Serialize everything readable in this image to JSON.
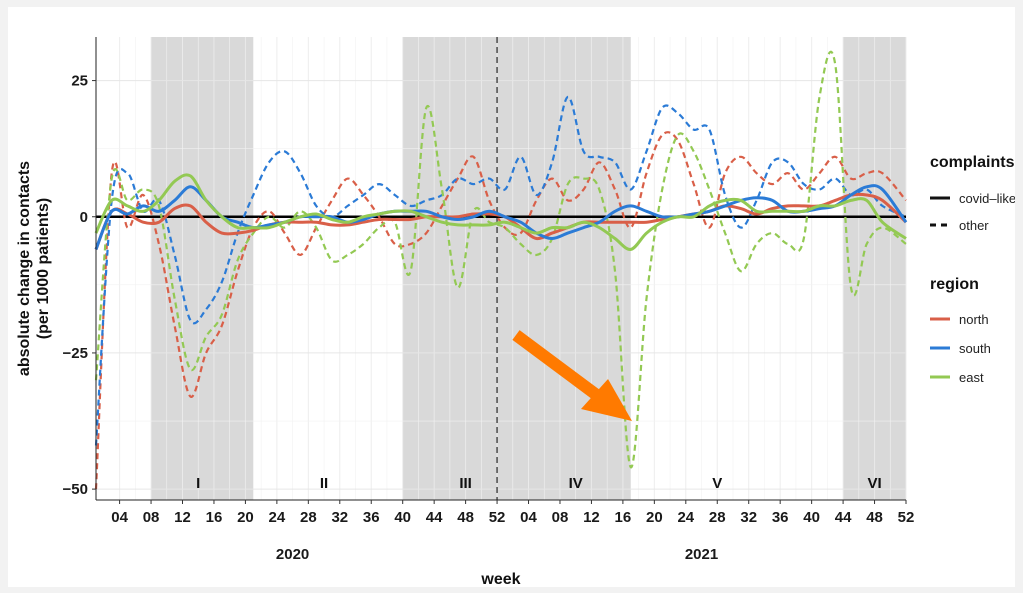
{
  "chart_data": {
    "type": "line",
    "ylabel": "absolute change in contacts\n(per 1000 patients)",
    "ylabel_lines": [
      "absolute change in contacts",
      "(per 1000 patients)"
    ],
    "xlabel": "week",
    "ylim": [
      -52,
      33
    ],
    "yticks": [
      -50,
      -25,
      0,
      25
    ],
    "xlim_weeks": [
      1,
      104
    ],
    "x_tick_labels": [
      "04",
      "08",
      "12",
      "16",
      "20",
      "24",
      "28",
      "32",
      "36",
      "40",
      "44",
      "48",
      "52",
      "04",
      "08",
      "12",
      "16",
      "20",
      "24",
      "28",
      "32",
      "36",
      "40",
      "44",
      "48",
      "52"
    ],
    "year_labels": [
      {
        "label": "2020",
        "x": 26
      },
      {
        "label": "2021",
        "x": 78
      }
    ],
    "periods": [
      {
        "label": "I",
        "start": 8,
        "end": 21,
        "shaded": true,
        "label_x": 14
      },
      {
        "label": "II",
        "start": 21,
        "end": 40,
        "shaded": false,
        "label_x": 30
      },
      {
        "label": "III",
        "start": 40,
        "end": 52,
        "shaded": true,
        "label_x": 48
      },
      {
        "label": "IV",
        "start": 52,
        "end": 69,
        "shaded": true,
        "label_x": 62
      },
      {
        "label": "V",
        "start": 69,
        "end": 96,
        "shaded": false,
        "label_x": 80
      },
      {
        "label": "VI",
        "start": 96,
        "end": 104,
        "shaded": true,
        "label_x": 100
      }
    ],
    "vline_x": 52,
    "legend": {
      "placement": "right",
      "complaints_title": "complaints",
      "complaints": [
        {
          "label": "covid–like",
          "linestyle": "solid"
        },
        {
          "label": "other",
          "linestyle": "dashed"
        }
      ],
      "region_title": "region",
      "region": [
        {
          "label": "north",
          "color": "#d95f48"
        },
        {
          "label": "south",
          "color": "#2b7bd6"
        },
        {
          "label": "east",
          "color": "#93c953"
        }
      ]
    },
    "series": [
      {
        "name": "north",
        "complaint": "covid–like",
        "color": "#d95f48",
        "dashed": false,
        "x": [
          1,
          3,
          5,
          7,
          9,
          11,
          13,
          15,
          17,
          19,
          21,
          23,
          25,
          27,
          29,
          31,
          33,
          35,
          37,
          39,
          41,
          43,
          45,
          47,
          49,
          51,
          53,
          55,
          57,
          59,
          61,
          63,
          65,
          67,
          69,
          71,
          73,
          75,
          77,
          79,
          81,
          83,
          85,
          87,
          89,
          91,
          93,
          95,
          97,
          99,
          101,
          104
        ],
        "y": [
          -6,
          1,
          0.5,
          -1,
          -1,
          1.5,
          2,
          -1,
          -3,
          -3,
          -2.5,
          -1.5,
          -1,
          -1,
          -1,
          -1.5,
          -1.5,
          -1,
          -0.5,
          -0.5,
          -0.5,
          0,
          0,
          0,
          0.5,
          0.5,
          0,
          -2,
          -4,
          -3,
          -2,
          -1,
          -1,
          -1,
          -1,
          -1,
          -0.5,
          0,
          0.5,
          1,
          2,
          1.5,
          0.5,
          1.5,
          2,
          2,
          2,
          3,
          4,
          4,
          3,
          -1
        ]
      },
      {
        "name": "south",
        "complaint": "covid–like",
        "color": "#2b7bd6",
        "dashed": false,
        "x": [
          1,
          3,
          5,
          7,
          9,
          11,
          13,
          15,
          17,
          19,
          21,
          23,
          25,
          27,
          29,
          31,
          33,
          35,
          37,
          39,
          41,
          43,
          45,
          47,
          49,
          51,
          53,
          55,
          57,
          59,
          61,
          63,
          65,
          67,
          69,
          71,
          73,
          75,
          77,
          79,
          81,
          83,
          85,
          87,
          89,
          91,
          93,
          95,
          97,
          99,
          101,
          104
        ],
        "y": [
          -6,
          1,
          0.5,
          2,
          1,
          3,
          5.5,
          3,
          0,
          -1,
          -2,
          -1.5,
          -1,
          0,
          0,
          0,
          -1,
          -0.5,
          0.5,
          1,
          1,
          1,
          0,
          -0.5,
          0,
          1,
          0,
          -1,
          -3,
          -4,
          -3,
          -2,
          -1,
          1,
          2,
          1,
          0,
          0,
          0.5,
          1,
          2,
          3,
          3.5,
          3,
          1,
          1,
          1.5,
          2,
          4,
          5.5,
          5,
          -1
        ]
      },
      {
        "name": "east",
        "complaint": "covid–like",
        "color": "#93c953",
        "dashed": false,
        "x": [
          1,
          3,
          5,
          7,
          9,
          11,
          13,
          15,
          17,
          19,
          21,
          23,
          25,
          27,
          29,
          31,
          33,
          35,
          37,
          39,
          41,
          43,
          45,
          47,
          49,
          51,
          53,
          55,
          57,
          59,
          61,
          63,
          65,
          67,
          69,
          71,
          73,
          75,
          77,
          79,
          81,
          83,
          85,
          87,
          89,
          91,
          93,
          95,
          97,
          99,
          101,
          104
        ],
        "y": [
          -3,
          3,
          2,
          1,
          3,
          6.5,
          7.5,
          3,
          0,
          -2,
          -2,
          -2,
          -1,
          0,
          0.5,
          -0.5,
          -1,
          0,
          0.5,
          1,
          1,
          0,
          -1,
          -1.5,
          -1.5,
          -1.5,
          -1,
          -2,
          -3,
          -2,
          -2,
          -1,
          -2,
          -4,
          -6,
          -3,
          -1,
          0,
          0,
          2,
          3,
          3,
          1,
          1,
          1,
          1,
          2,
          2,
          3,
          3,
          -1,
          -4
        ]
      },
      {
        "name": "north",
        "complaint": "other",
        "color": "#d95f48",
        "dashed": true,
        "x": [
          1,
          3,
          5,
          7,
          9,
          11,
          13,
          15,
          17,
          19,
          21,
          23,
          25,
          27,
          29,
          31,
          33,
          35,
          37,
          39,
          41,
          43,
          45,
          47,
          49,
          51,
          53,
          55,
          57,
          59,
          61,
          63,
          65,
          67,
          69,
          71,
          73,
          75,
          77,
          79,
          81,
          83,
          85,
          87,
          89,
          91,
          93,
          95,
          97,
          99,
          101,
          104
        ],
        "y": [
          -50,
          8,
          -2,
          4,
          -5,
          -20,
          -33,
          -25,
          -20,
          -10,
          -2,
          1,
          -3,
          -7,
          -2,
          3,
          7,
          4,
          0,
          -5,
          -5,
          -3,
          2,
          7,
          11,
          3,
          -2,
          -3,
          3,
          7,
          3,
          5,
          10,
          5,
          -2,
          8,
          15,
          14,
          6,
          -2,
          8,
          11,
          8,
          6,
          8,
          5,
          8,
          11,
          7,
          8,
          8,
          3
        ]
      },
      {
        "name": "south",
        "complaint": "other",
        "color": "#2b7bd6",
        "dashed": true,
        "x": [
          1,
          3,
          5,
          7,
          9,
          11,
          13,
          15,
          17,
          19,
          21,
          23,
          25,
          27,
          29,
          31,
          33,
          35,
          37,
          39,
          41,
          43,
          45,
          47,
          49,
          51,
          53,
          55,
          57,
          59,
          61,
          63,
          65,
          67,
          69,
          71,
          73,
          75,
          77,
          79,
          81,
          83,
          85,
          87,
          89,
          91,
          93,
          95,
          97,
          99,
          101,
          104
        ],
        "y": [
          -42,
          3,
          8,
          1,
          3,
          -7,
          -19,
          -17,
          -12,
          -3,
          4,
          10,
          12,
          8,
          2,
          0,
          2,
          4,
          6,
          4,
          2,
          3,
          4,
          7,
          6,
          7,
          5,
          11,
          4,
          10,
          22,
          12,
          11,
          10,
          5,
          12,
          20,
          19,
          16,
          16,
          4,
          -2,
          3,
          10,
          10,
          6,
          5,
          7,
          4,
          5,
          2,
          0
        ]
      },
      {
        "name": "east",
        "complaint": "other",
        "color": "#93c953",
        "dashed": true,
        "x": [
          1,
          3,
          5,
          7,
          9,
          11,
          13,
          15,
          17,
          19,
          21,
          23,
          25,
          27,
          29,
          31,
          33,
          35,
          37,
          39,
          41,
          43,
          45,
          47,
          49,
          51,
          53,
          55,
          57,
          59,
          61,
          63,
          65,
          67,
          69,
          71,
          73,
          75,
          77,
          79,
          81,
          83,
          85,
          87,
          89,
          91,
          93,
          95,
          97,
          99,
          101,
          104
        ],
        "y": [
          -30,
          7,
          3,
          5,
          2,
          -15,
          -28,
          -22,
          -18,
          -8,
          -3,
          0,
          -2,
          1,
          -2,
          -8,
          -7,
          -5,
          -2,
          -1,
          -10,
          20,
          5,
          -13,
          1,
          -1,
          -2,
          -5,
          -7,
          -4,
          6,
          7,
          5,
          -10,
          -46,
          -15,
          5,
          15,
          12,
          5,
          -3,
          -10,
          -5,
          -3,
          -5,
          -4,
          22,
          28,
          -13,
          -5,
          -2,
          -5
        ]
      }
    ]
  }
}
